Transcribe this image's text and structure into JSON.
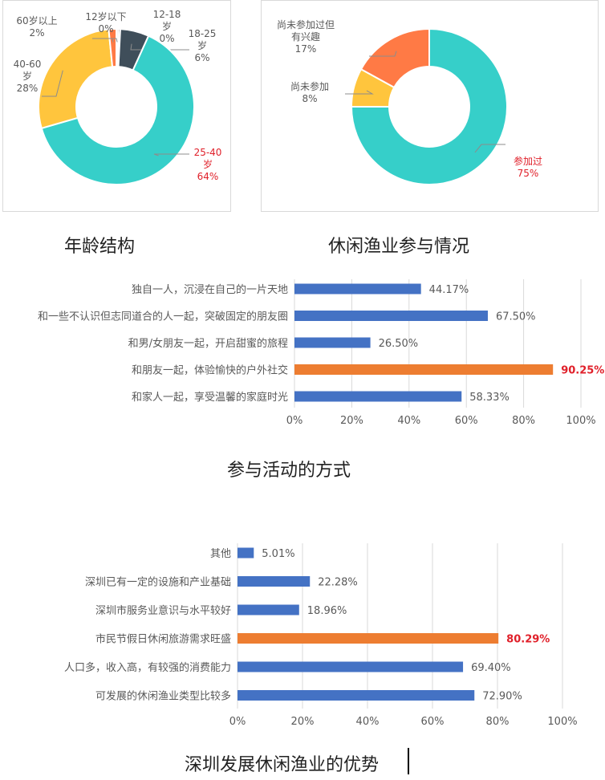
{
  "captions": {
    "age": "年龄结构",
    "participation": "休闲渔业参与情况",
    "activity": "参与活动的方式",
    "advantage": "深圳发展休闲渔业的优势"
  },
  "colors": {
    "teal": "#36CFC9",
    "yellow": "#FFC53D",
    "orange": "#FF7A45",
    "slate": "#3F4E5A",
    "bar_blue": "#4472C4",
    "bar_orange": "#ED7D31",
    "highlight_text": "#E0202A",
    "label_text": "#595959",
    "grid": "#D9D9D9"
  },
  "chart_data": [
    {
      "id": "age",
      "type": "pie",
      "title": "年龄结构",
      "slices": [
        {
          "label": "12-18\n岁",
          "pct_text": "0%",
          "value": 0.4,
          "color": "#3F4E5A",
          "highlight": false
        },
        {
          "label": "18-25\n岁",
          "pct_text": "6%",
          "value": 6,
          "color": "#3F4E5A",
          "highlight": false
        },
        {
          "label": "25-40\n岁",
          "pct_text": "64%",
          "value": 64,
          "color": "#36CFC9",
          "highlight": true
        },
        {
          "label": "40-60\n岁",
          "pct_text": "28%",
          "value": 28,
          "color": "#FFC53D",
          "highlight": false
        },
        {
          "label": "60岁以上",
          "pct_text": "2%",
          "value": 1.6,
          "color": "#FF7A45",
          "highlight": false
        },
        {
          "label": "12岁以下",
          "pct_text": "0%",
          "value": 0.4,
          "color": "#D9D9D9",
          "highlight": false
        }
      ]
    },
    {
      "id": "participation",
      "type": "pie",
      "title": "休闲渔业参与情况",
      "slices": [
        {
          "label": "参加过",
          "pct_text": "75%",
          "value": 75,
          "color": "#36CFC9",
          "highlight": true
        },
        {
          "label": "尚未参加",
          "pct_text": "8%",
          "value": 8,
          "color": "#FFC53D",
          "highlight": false
        },
        {
          "label": "尚未参加过但\n有兴趣",
          "pct_text": "17%",
          "value": 17,
          "color": "#FF7A45",
          "highlight": false
        }
      ]
    },
    {
      "id": "activity",
      "type": "bar",
      "title": "参与活动的方式",
      "categories": [
        "独自一人，沉浸在自己的一片天地",
        "和一些不认识但志同道合的人一起，突破固定的朋友圈",
        "和男/女朋友一起，开启甜蜜的旅程",
        "和朋友一起，体验愉快的户外社交",
        "和家人一起，享受温馨的家庭时光"
      ],
      "values": [
        44.17,
        67.5,
        26.5,
        90.25,
        58.33
      ],
      "value_labels": [
        "44.17%",
        "67.50%",
        "26.50%",
        "90.25%",
        "58.33%"
      ],
      "highlight_index": 3,
      "xlim": [
        0,
        100
      ],
      "ticks": [
        "0%",
        "20%",
        "40%",
        "60%",
        "80%",
        "100%"
      ]
    },
    {
      "id": "advantage",
      "type": "bar",
      "title": "深圳发展休闲渔业的优势",
      "categories": [
        "其他",
        "深圳已有一定的设施和产业基础",
        "深圳市服务业意识与水平较好",
        "市民节假日休闲旅游需求旺盛",
        "人口多，收入高，有较强的消费能力",
        "可发展的休闲渔业类型比较多"
      ],
      "values": [
        5.01,
        22.28,
        18.96,
        80.29,
        69.4,
        72.9
      ],
      "value_labels": [
        "5.01%",
        "22.28%",
        "18.96%",
        "80.29%",
        "69.40%",
        "72.90%"
      ],
      "highlight_index": 3,
      "xlim": [
        0,
        100
      ],
      "ticks": [
        "0%",
        "20%",
        "40%",
        "60%",
        "80%",
        "100%"
      ]
    }
  ]
}
